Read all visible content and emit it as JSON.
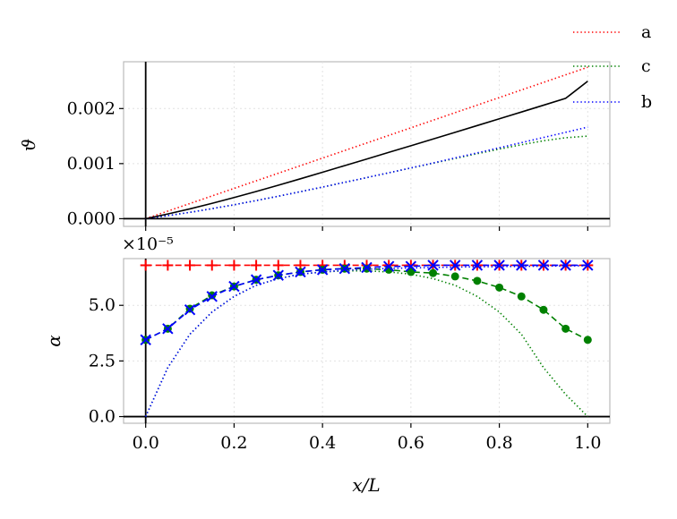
{
  "chart_data": [
    {
      "type": "line",
      "ylabel": "ϑ",
      "xlim": [
        -0.05,
        1.05
      ],
      "ylim": [
        -0.00014,
        0.00285
      ],
      "grid": true,
      "legend_position": "top-right, outside plot area",
      "legend": [
        "a",
        "c",
        "b"
      ],
      "yticks": [
        0.0,
        0.001,
        0.002
      ],
      "ytick_labels": [
        "0.000",
        "0.001",
        "0.002"
      ],
      "series": [
        {
          "name": "a",
          "color": "#ff0000",
          "style": "dotted",
          "x": [
            0,
            1
          ],
          "y": [
            0,
            0.00275
          ]
        },
        {
          "name": "c",
          "color": "#008000",
          "style": "dotted",
          "x": [
            0,
            0.05,
            0.1,
            0.15,
            0.2,
            0.25,
            0.3,
            0.35,
            0.4,
            0.45,
            0.5,
            0.55,
            0.6,
            0.65,
            0.7,
            0.75,
            0.8,
            0.85,
            0.9,
            0.95,
            1.0
          ],
          "y": [
            0,
            5.5e-05,
            0.000115,
            0.000182,
            0.000253,
            0.000329,
            0.000408,
            0.00049,
            0.000574,
            0.00066,
            0.000746,
            0.000833,
            0.00092,
            0.001007,
            0.001094,
            0.00118,
            0.001264,
            0.001343,
            0.001415,
            0.00147,
            0.0015
          ]
        },
        {
          "name": "b",
          "color": "#0000ff",
          "style": "dotted",
          "x": [
            0,
            0.05,
            0.1,
            0.15,
            0.2,
            0.25,
            0.3,
            0.35,
            0.4,
            0.45,
            0.5,
            0.55,
            0.6,
            0.65,
            0.7,
            0.75,
            0.8,
            0.85,
            0.9,
            0.95,
            1.0
          ],
          "y": [
            0,
            5.5e-05,
            0.000115,
            0.000182,
            0.000253,
            0.000329,
            0.000408,
            0.00049,
            0.000574,
            0.00066,
            0.000746,
            0.000834,
            0.000922,
            0.001012,
            0.001103,
            0.001195,
            0.001288,
            0.001381,
            0.001475,
            0.001569,
            0.001663
          ]
        },
        {
          "name": "",
          "color": "#000000",
          "style": "solid",
          "x": [
            0,
            0.05,
            0.1,
            0.15,
            0.2,
            0.25,
            0.3,
            0.35,
            0.4,
            0.45,
            0.5,
            0.55,
            0.6,
            0.65,
            0.7,
            0.75,
            0.8,
            0.85,
            0.9,
            0.95,
            1.0
          ],
          "y": [
            0,
            8.5e-05,
            0.000178,
            0.000278,
            0.000384,
            0.000494,
            0.000608,
            0.000724,
            0.000843,
            0.000963,
            0.001083,
            0.001204,
            0.001325,
            0.001447,
            0.001569,
            0.001691,
            0.001814,
            0.001937,
            0.002061,
            0.002185,
            0.002496
          ]
        }
      ]
    },
    {
      "type": "line",
      "xlabel": "x/L",
      "ylabel": "α",
      "offset_label": "×10⁻⁵",
      "xlim": [
        -0.05,
        1.05
      ],
      "ylim": [
        -0.3,
        7.1
      ],
      "grid": true,
      "xticks": [
        0.0,
        0.2,
        0.4,
        0.6,
        0.8,
        1.0
      ],
      "xtick_labels": [
        "0.0",
        "0.2",
        "0.4",
        "0.6",
        "0.8",
        "1.0"
      ],
      "yticks": [
        0.0,
        2.5,
        5.0
      ],
      "ytick_labels": [
        "0.0",
        "2.5",
        "5.0"
      ],
      "series": [
        {
          "name": "a",
          "color": "#ff0000",
          "style": "dashed",
          "marker": "plus",
          "x": [
            0,
            0.05,
            0.1,
            0.15,
            0.2,
            0.25,
            0.3,
            0.35,
            0.4,
            0.45,
            0.5,
            0.55,
            0.6,
            0.65,
            0.7,
            0.75,
            0.8,
            0.85,
            0.9,
            0.95,
            1.0
          ],
          "y": [
            6.8,
            6.8,
            6.8,
            6.8,
            6.8,
            6.8,
            6.8,
            6.8,
            6.8,
            6.8,
            6.8,
            6.8,
            6.8,
            6.8,
            6.8,
            6.8,
            6.8,
            6.8,
            6.8,
            6.8,
            6.8
          ]
        },
        {
          "name": "c",
          "color": "#008000",
          "style": "dashed",
          "marker": "circle",
          "x": [
            0,
            0.05,
            0.1,
            0.15,
            0.2,
            0.25,
            0.3,
            0.35,
            0.4,
            0.45,
            0.5,
            0.55,
            0.6,
            0.65,
            0.7,
            0.75,
            0.8,
            0.85,
            0.9,
            0.95,
            1.0
          ],
          "y": [
            3.45,
            3.95,
            4.85,
            5.45,
            5.85,
            6.15,
            6.35,
            6.5,
            6.6,
            6.65,
            6.65,
            6.6,
            6.5,
            6.45,
            6.3,
            6.1,
            5.8,
            5.4,
            4.8,
            3.95,
            3.45
          ]
        },
        {
          "name": "c",
          "color": "#008000",
          "style": "dotted",
          "x": [
            0,
            0.05,
            0.1,
            0.15,
            0.2,
            0.25,
            0.3,
            0.35,
            0.4,
            0.45,
            0.5,
            0.55,
            0.6,
            0.65,
            0.7,
            0.75,
            0.8,
            0.85,
            0.9,
            0.95,
            1.0
          ],
          "y": [
            0,
            2.2,
            3.7,
            4.7,
            5.4,
            5.9,
            6.2,
            6.4,
            6.5,
            6.55,
            6.55,
            6.5,
            6.4,
            6.2,
            5.9,
            5.4,
            4.7,
            3.7,
            2.2,
            1.0,
            0
          ]
        },
        {
          "name": "b",
          "color": "#0000ff",
          "style": "dashed",
          "marker": "x",
          "x": [
            0,
            0.05,
            0.1,
            0.15,
            0.2,
            0.25,
            0.3,
            0.35,
            0.4,
            0.45,
            0.5,
            0.55,
            0.6,
            0.65,
            0.7,
            0.75,
            0.8,
            0.85,
            0.9,
            0.95,
            1.0
          ],
          "y": [
            3.45,
            3.95,
            4.8,
            5.4,
            5.85,
            6.15,
            6.35,
            6.5,
            6.6,
            6.65,
            6.7,
            6.75,
            6.75,
            6.8,
            6.8,
            6.8,
            6.8,
            6.8,
            6.8,
            6.8,
            6.8
          ]
        },
        {
          "name": "b",
          "color": "#0000ff",
          "style": "dotted",
          "x": [
            0,
            0.05,
            0.1,
            0.15,
            0.2,
            0.25,
            0.3,
            0.35,
            0.4,
            0.45,
            0.5,
            0.55,
            0.6,
            0.65,
            0.7,
            0.75,
            0.8,
            0.85,
            0.9,
            0.95,
            1.0
          ],
          "y": [
            0,
            2.2,
            3.7,
            4.7,
            5.4,
            5.9,
            6.2,
            6.4,
            6.5,
            6.58,
            6.62,
            6.66,
            6.68,
            6.7,
            6.72,
            6.73,
            6.74,
            6.75,
            6.76,
            6.77,
            6.78
          ]
        }
      ]
    }
  ]
}
